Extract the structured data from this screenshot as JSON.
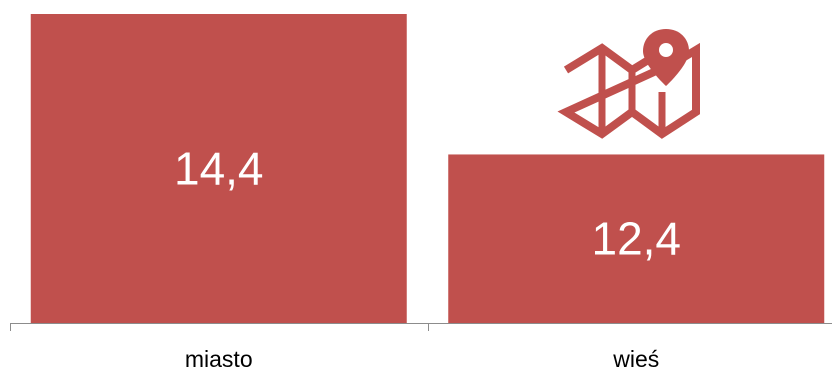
{
  "chart_data": {
    "type": "bar",
    "categories": [
      "miasto",
      "wieś"
    ],
    "values": [
      14.4,
      12.4
    ],
    "value_labels": [
      "14,4",
      "12,4"
    ],
    "title": "",
    "xlabel": "",
    "ylabel": "",
    "ylim": [
      10,
      14.4
    ],
    "grid": false,
    "legend": "none",
    "bar_color": "#C0504D",
    "axis_color": "#8c8c8c",
    "decorations": [
      "map-icon"
    ]
  }
}
